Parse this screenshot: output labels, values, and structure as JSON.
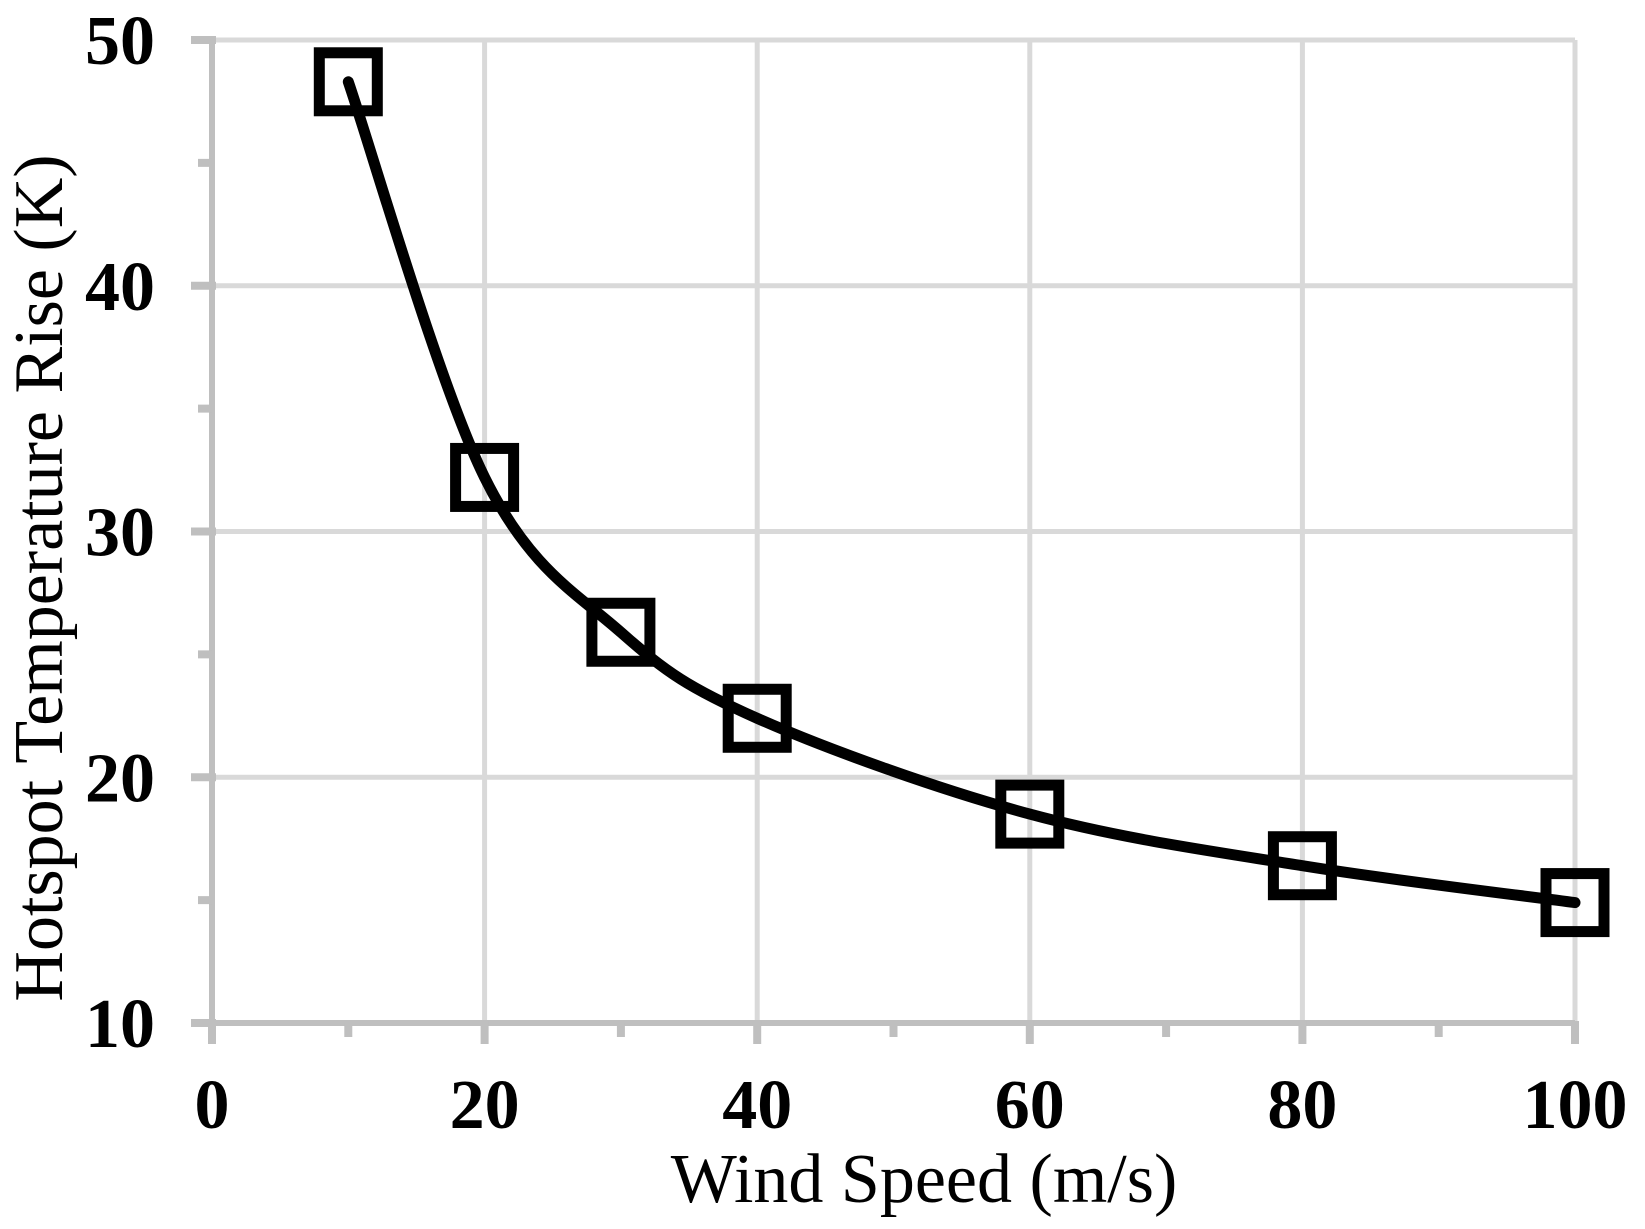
{
  "chart_data": {
    "type": "line",
    "title": "",
    "xlabel": "Wind Speed (m/s)",
    "ylabel": "Hotspot Temperature Rise (K)",
    "x": [
      10,
      20,
      30,
      40,
      60,
      80,
      100
    ],
    "y": [
      48.3,
      32.2,
      25.9,
      22.4,
      18.5,
      16.4,
      14.9
    ],
    "xlim": [
      0,
      100
    ],
    "ylim": [
      10,
      50
    ],
    "x_major_ticks": [
      0,
      20,
      40,
      60,
      80,
      100
    ],
    "x_minor_ticks": [
      10,
      30,
      50,
      70,
      90
    ],
    "y_major_ticks": [
      10,
      20,
      30,
      40,
      50
    ],
    "y_minor_ticks": [
      15,
      25,
      35,
      45
    ],
    "x_tick_labels": [
      "0",
      "20",
      "40",
      "60",
      "80",
      "100"
    ],
    "y_tick_labels": [
      "10",
      "20",
      "30",
      "40",
      "50"
    ],
    "grid": true,
    "legend": false,
    "line_color": "#000000",
    "marker": "hollow-square",
    "marker_color": "#000000",
    "gridline_color": "#D9D9D9",
    "axis_color": "#BFBFBF",
    "background_color": "#FFFFFF"
  }
}
